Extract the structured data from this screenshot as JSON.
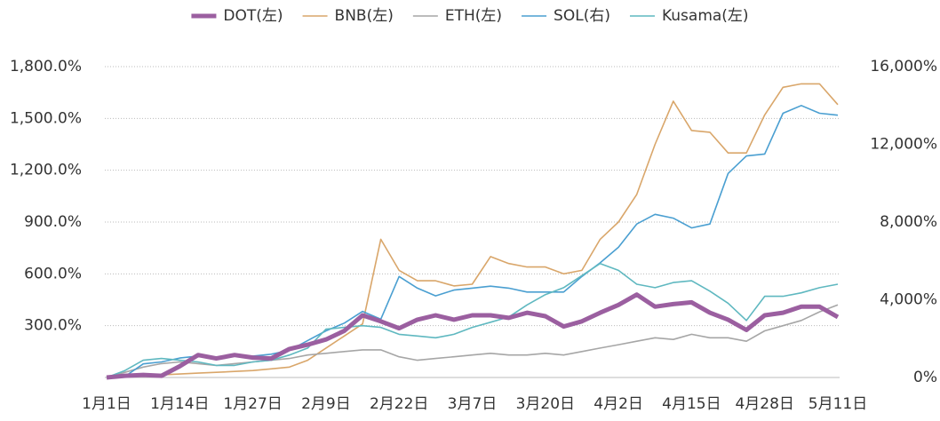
{
  "chart_data": {
    "type": "line",
    "categories": [
      "1月1日",
      null,
      null,
      null,
      "1月14日",
      null,
      null,
      null,
      "1月27日",
      null,
      null,
      null,
      "2月9日",
      null,
      null,
      null,
      "2月22日",
      null,
      null,
      null,
      "3月7日",
      null,
      null,
      null,
      "3月20日",
      null,
      null,
      null,
      "4月2日",
      null,
      null,
      null,
      "4月15日",
      null,
      null,
      null,
      "4月28日",
      null,
      null,
      null,
      "5月11日"
    ],
    "series": [
      {
        "name": "DOT(左)",
        "color": "#9b5fa0",
        "values": [
          0,
          10,
          15,
          10,
          65,
          130,
          110,
          130,
          115,
          110,
          165,
          190,
          220,
          270,
          360,
          325,
          285,
          335,
          360,
          335,
          360,
          360,
          345,
          375,
          355,
          295,
          325,
          375,
          420,
          480,
          410,
          425,
          435,
          375,
          335,
          275,
          360,
          375,
          410,
          410,
          350
        ]
      },
      {
        "name": "BNB(左)",
        "color": "#d9a66a",
        "values": [
          0,
          5,
          10,
          15,
          20,
          25,
          30,
          35,
          40,
          50,
          60,
          100,
          170,
          240,
          310,
          800,
          620,
          560,
          560,
          530,
          540,
          700,
          660,
          640,
          640,
          600,
          620,
          800,
          900,
          1060,
          1350,
          1600,
          1430,
          1420,
          1300,
          1300,
          1520,
          1680,
          1700,
          1700,
          1580
        ]
      },
      {
        "name": "ETH(左)",
        "color": "#a6a6a6",
        "values": [
          0,
          30,
          60,
          80,
          90,
          80,
          70,
          80,
          90,
          100,
          110,
          130,
          140,
          150,
          160,
          160,
          120,
          100,
          110,
          120,
          130,
          140,
          130,
          130,
          140,
          130,
          150,
          170,
          190,
          210,
          230,
          220,
          250,
          230,
          230,
          210,
          270,
          300,
          330,
          380,
          420
        ]
      },
      {
        "name": "SOL(右)",
        "color": "#4a9fd1",
        "axis": "y2",
        "values": [
          0,
          50,
          700,
          800,
          1000,
          1100,
          1000,
          1100,
          1100,
          1200,
          1400,
          1900,
          2400,
          2800,
          3400,
          3000,
          5200,
          4600,
          4200,
          4500,
          4600,
          4700,
          4600,
          4400,
          4400,
          4400,
          5200,
          5900,
          6700,
          7900,
          8400,
          8200,
          7700,
          7900,
          10500,
          11400,
          11500,
          13600,
          14000,
          13600,
          13500
        ]
      },
      {
        "name": "Kusama(左)",
        "color": "#5fb8c0",
        "values": [
          0,
          40,
          100,
          110,
          100,
          90,
          70,
          70,
          90,
          100,
          130,
          170,
          280,
          290,
          300,
          290,
          250,
          240,
          230,
          250,
          290,
          320,
          350,
          420,
          480,
          520,
          590,
          660,
          620,
          540,
          520,
          550,
          560,
          500,
          430,
          330,
          470,
          470,
          490,
          520,
          540
        ]
      }
    ],
    "ylim": [
      0,
      1800
    ],
    "yticks": [
      {
        "value": 300,
        "label": "300.0%"
      },
      {
        "value": 600,
        "label": "600.0%"
      },
      {
        "value": 900,
        "label": "900.0%"
      },
      {
        "value": 1200,
        "label": "1,200.0%"
      },
      {
        "value": 1500,
        "label": "1,500.0%"
      },
      {
        "value": 1800,
        "label": "1,800.0%"
      }
    ],
    "y2lim": [
      0,
      16000
    ],
    "y2ticks": [
      {
        "value": 0,
        "label": "0%"
      },
      {
        "value": 4000,
        "label": "4,000%"
      },
      {
        "value": 8000,
        "label": "8,000%"
      },
      {
        "value": 12000,
        "label": "12,000%"
      },
      {
        "value": 16000,
        "label": "16,000%"
      }
    ],
    "grid": true,
    "legend": "top"
  }
}
